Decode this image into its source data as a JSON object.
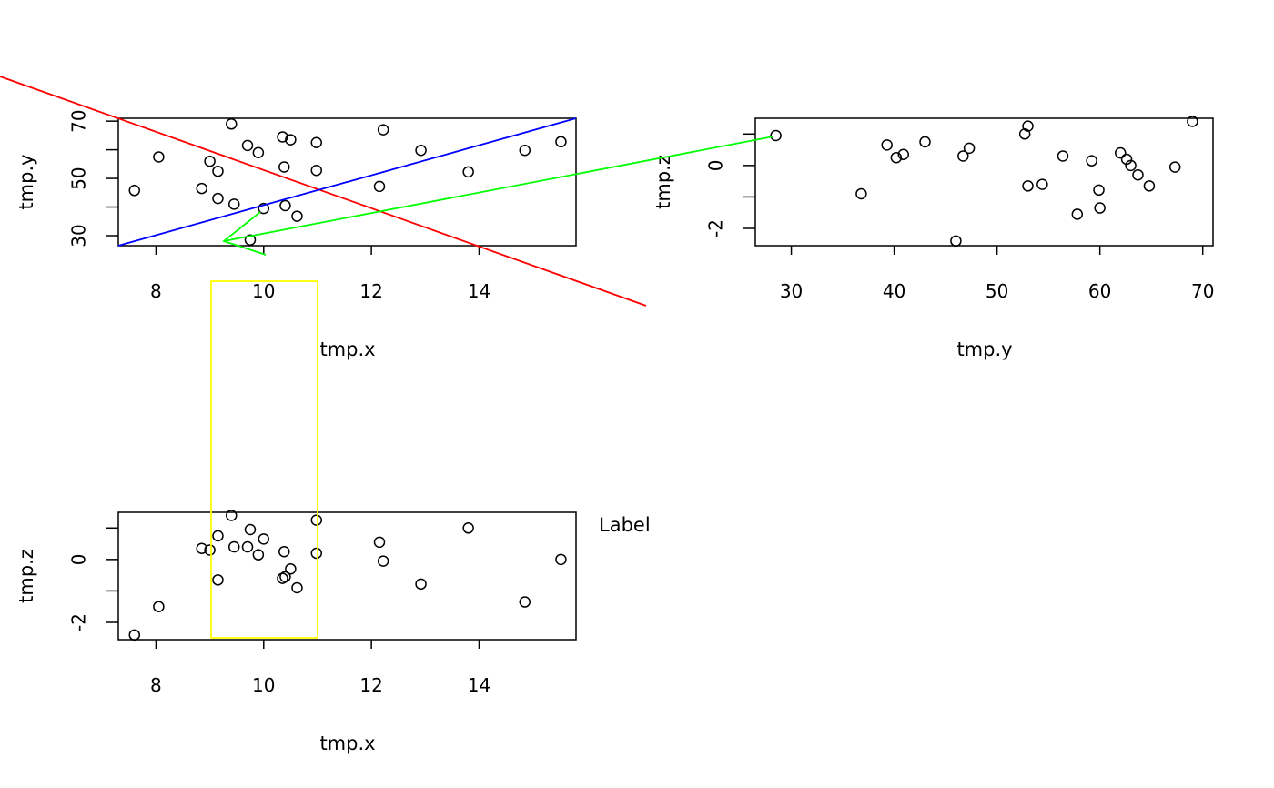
{
  "chart_data": [
    {
      "type": "scatter",
      "xlabel": "tmp.x",
      "ylabel": "tmp.y",
      "xlim": [
        7.3,
        15.8
      ],
      "ylim": [
        26.5,
        71
      ],
      "xticks": [
        "8",
        "10",
        "12",
        "14"
      ],
      "yticks": [
        "30",
        "50",
        "70"
      ],
      "points": [
        [
          7.6,
          45.8
        ],
        [
          8.05,
          57.5
        ],
        [
          8.85,
          46.5
        ],
        [
          9.0,
          56.0
        ],
        [
          9.15,
          52.5
        ],
        [
          9.15,
          43.0
        ],
        [
          9.4,
          69.0
        ],
        [
          9.45,
          41.0
        ],
        [
          9.7,
          61.5
        ],
        [
          9.75,
          28.5
        ],
        [
          9.9,
          59.0
        ],
        [
          10.0,
          39.5
        ],
        [
          10.35,
          64.5
        ],
        [
          10.38,
          54.0
        ],
        [
          10.4,
          40.5
        ],
        [
          10.5,
          63.5
        ],
        [
          10.62,
          36.8
        ],
        [
          10.98,
          62.5
        ],
        [
          10.98,
          52.8
        ],
        [
          12.15,
          47.2
        ],
        [
          12.22,
          67.0
        ],
        [
          12.92,
          59.8
        ],
        [
          13.8,
          52.3
        ],
        [
          14.85,
          59.8
        ],
        [
          15.52,
          62.8
        ]
      ]
    },
    {
      "type": "scatter",
      "xlabel": "tmp.y",
      "ylabel": "tmp.z",
      "xlim": [
        26.5,
        71
      ],
      "ylim": [
        -2.55,
        1.5
      ],
      "xticks": [
        "30",
        "40",
        "50",
        "60",
        "70"
      ],
      "yticks": [
        "-2",
        "0"
      ],
      "points": [
        [
          28.5,
          0.95
        ],
        [
          36.8,
          -0.9
        ],
        [
          39.3,
          0.65
        ],
        [
          40.2,
          0.25
        ],
        [
          40.9,
          0.35
        ],
        [
          43.0,
          0.75
        ],
        [
          46.0,
          -2.4
        ],
        [
          46.7,
          0.3
        ],
        [
          47.3,
          0.55
        ],
        [
          52.7,
          1.0
        ],
        [
          53.0,
          1.25
        ],
        [
          53.0,
          -0.65
        ],
        [
          54.4,
          -0.6
        ],
        [
          56.4,
          0.3
        ],
        [
          57.8,
          -1.55
        ],
        [
          59.2,
          0.15
        ],
        [
          59.9,
          -0.78
        ],
        [
          60.0,
          -1.35
        ],
        [
          62.0,
          0.4
        ],
        [
          62.6,
          0.2
        ],
        [
          63.0,
          0.0
        ],
        [
          63.7,
          -0.3
        ],
        [
          64.8,
          -0.65
        ],
        [
          67.3,
          -0.05
        ],
        [
          69.0,
          1.4
        ]
      ]
    },
    {
      "type": "scatter",
      "xlabel": "tmp.x",
      "ylabel": "tmp.z",
      "xlim": [
        7.3,
        15.8
      ],
      "ylim": [
        -2.55,
        1.5
      ],
      "xticks": [
        "8",
        "10",
        "12",
        "14"
      ],
      "yticks": [
        "-2",
        "0"
      ],
      "points": [
        [
          7.6,
          -2.4
        ],
        [
          8.05,
          -1.5
        ],
        [
          8.85,
          0.35
        ],
        [
          9.0,
          0.3
        ],
        [
          9.15,
          0.75
        ],
        [
          9.15,
          -0.65
        ],
        [
          9.4,
          1.4
        ],
        [
          9.45,
          0.4
        ],
        [
          9.7,
          0.4
        ],
        [
          9.75,
          0.95
        ],
        [
          9.9,
          0.15
        ],
        [
          10.0,
          0.65
        ],
        [
          10.35,
          -0.6
        ],
        [
          10.38,
          0.25
        ],
        [
          10.4,
          -0.55
        ],
        [
          10.5,
          -0.3
        ],
        [
          10.62,
          -0.9
        ],
        [
          10.98,
          1.25
        ],
        [
          10.98,
          0.2
        ],
        [
          12.15,
          0.55
        ],
        [
          12.22,
          -0.05
        ],
        [
          12.92,
          -0.78
        ],
        [
          13.8,
          1.0
        ],
        [
          14.85,
          -1.35
        ],
        [
          15.52,
          0.0
        ]
      ]
    }
  ],
  "annotations": {
    "margin_text": "Label",
    "colors": {
      "red_line": "#ff0000",
      "blue_line": "#0000ff",
      "green_arrow": "#00ff00",
      "yellow_rect": "#ffff00"
    }
  }
}
